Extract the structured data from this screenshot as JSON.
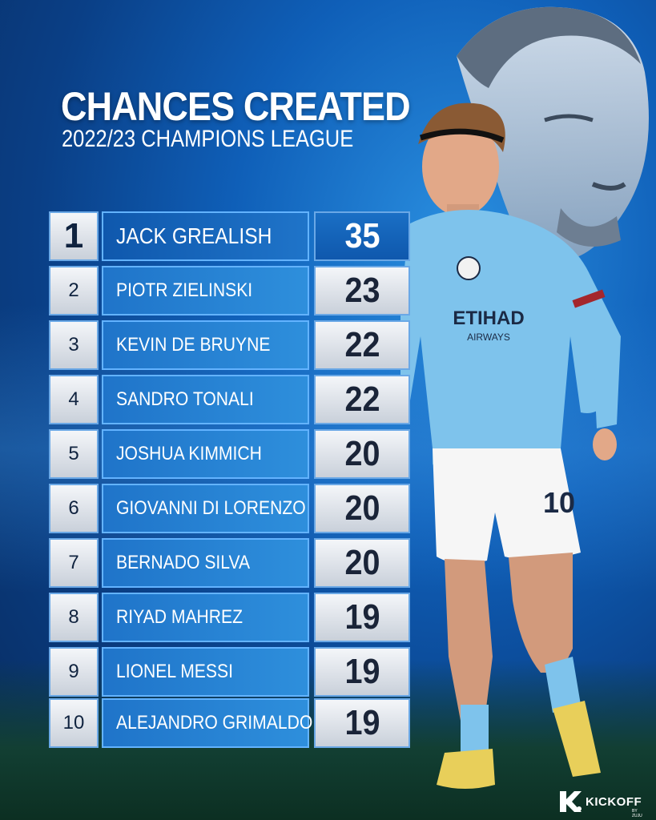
{
  "header": {
    "title": "CHANCES CREATED",
    "subtitle": "2022/23 CHAMPIONS LEAGUE"
  },
  "table": {
    "rows": [
      {
        "rank": "1",
        "name": "JACK GREALISH",
        "value": "35"
      },
      {
        "rank": "2",
        "name": "PIOTR ZIELINSKI",
        "value": "23"
      },
      {
        "rank": "3",
        "name": "KEVIN DE BRUYNE",
        "value": "22"
      },
      {
        "rank": "4",
        "name": "SANDRO TONALI",
        "value": "22"
      },
      {
        "rank": "5",
        "name": "JOSHUA KIMMICH",
        "value": "20"
      },
      {
        "rank": "6",
        "name": "GIOVANNI DI LORENZO",
        "value": "20"
      },
      {
        "rank": "7",
        "name": "BERNADO SILVA",
        "value": "20"
      },
      {
        "rank": "8",
        "name": "RIYAD MAHREZ",
        "value": "19"
      },
      {
        "rank": "9",
        "name": "LIONEL MESSI",
        "value": "19"
      },
      {
        "rank": "10",
        "name": "ALEJANDRO GRIMALDO",
        "value": "19"
      }
    ]
  },
  "jersey": {
    "sponsor": "ETIHAD",
    "sponsor_sub": "AIRWAYS",
    "number": "10"
  },
  "brand": {
    "name": "KICKOFF",
    "tagline": "BY ZUJU"
  },
  "colors": {
    "background": "#0f5fb8",
    "name_cell": "#2e8fdc",
    "highlight_cell": "#0f58ad",
    "value_cell": "#e6eaf0"
  }
}
